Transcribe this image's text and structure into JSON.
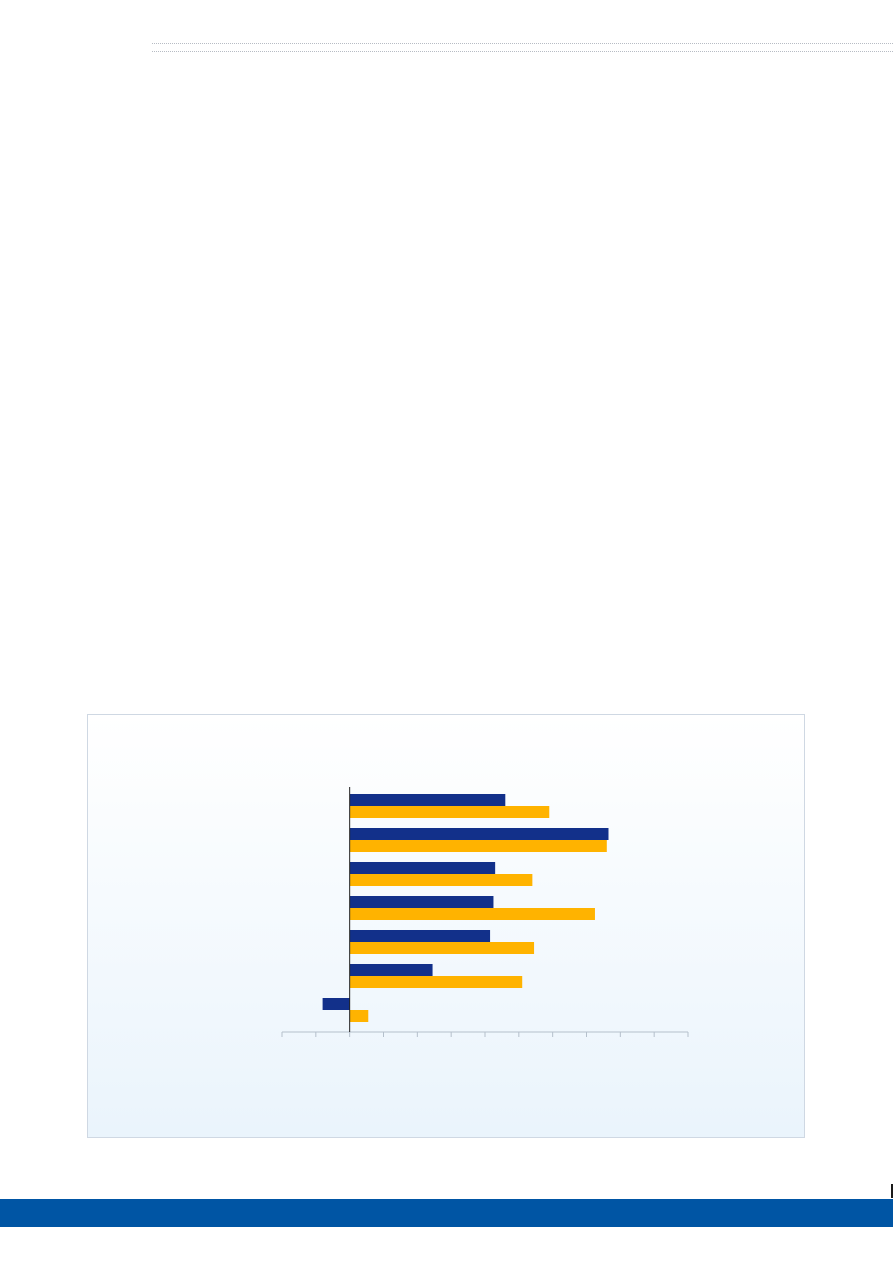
{
  "colors": {
    "series_1": "#12308a",
    "series_2": "#ffb300",
    "footer": "#0055a4",
    "axis": "#222222",
    "tick": "#b5c0cc"
  },
  "chart_data": {
    "type": "bar",
    "orientation": "horizontal",
    "categories": [
      "",
      "",
      "",
      "",
      "",
      "",
      ""
    ],
    "series": [
      {
        "values": [
          4.6,
          7.65,
          4.3,
          4.25,
          4.15,
          2.45,
          -0.8
        ]
      },
      {
        "values": [
          5.9,
          7.6,
          5.4,
          7.25,
          5.45,
          5.1,
          0.55
        ]
      }
    ],
    "xlim": [
      -2,
      10
    ],
    "x_tick_step": 1,
    "grid": false,
    "legend": "none"
  }
}
